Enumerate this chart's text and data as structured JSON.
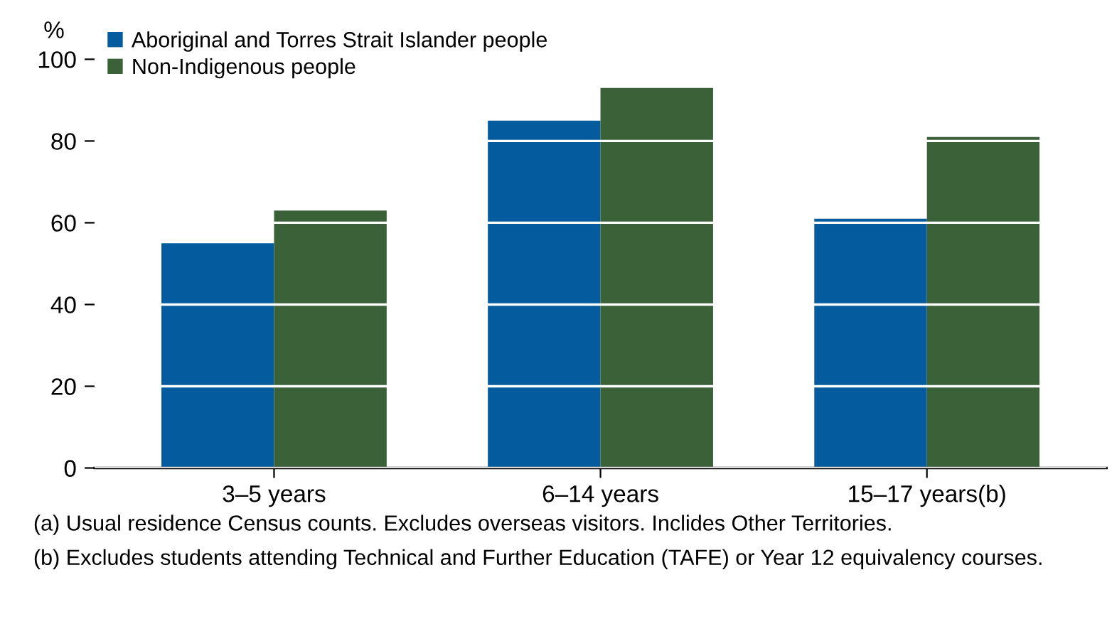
{
  "chart_data": {
    "type": "bar",
    "ylabel": "%",
    "categories": [
      "3–5 years",
      "6–14 years",
      "15–17 years(b)"
    ],
    "series": [
      {
        "name": "Aboriginal and Torres Strait Islander people",
        "color": "#045c9e",
        "values": [
          55,
          85,
          61
        ]
      },
      {
        "name": "Non-Indigenous people",
        "color": "#3a6138",
        "values": [
          63,
          93,
          81
        ]
      }
    ],
    "ylim": [
      0,
      100
    ],
    "yticks": [
      0,
      20,
      40,
      60,
      80,
      100
    ],
    "grid": "y",
    "legend": "top left",
    "annotations": [
      "(a) Usual residence Census counts. Excludes overseas visitors. Inclides Other Territories.",
      "(b) Excludes students attending Technical and Further Education (TAFE) or Year 12 equivalency courses."
    ]
  }
}
